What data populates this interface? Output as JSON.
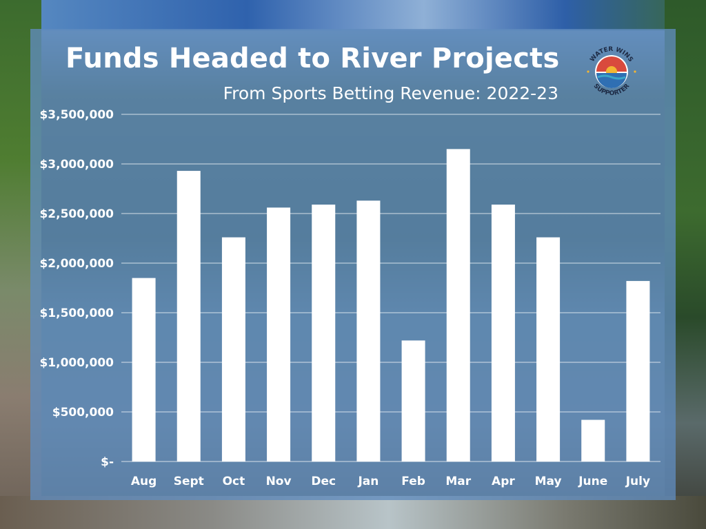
{
  "header": {
    "title": "Funds Headed to River Projects",
    "subtitle": "From Sports Betting Revenue: 2022-23"
  },
  "badge": {
    "top_text": "WATER WINS",
    "bottom_text": "SUPPORTER",
    "colors": {
      "red": "#d94a3d",
      "gold": "#f2b632",
      "blue": "#2f6fb3",
      "teal": "#3aa6c9"
    }
  },
  "chart_data": {
    "type": "bar",
    "title": "Funds Headed to River Projects",
    "subtitle": "From Sports Betting Revenue: 2022-23",
    "categories": [
      "Aug",
      "Sept",
      "Oct",
      "Nov",
      "Dec",
      "Jan",
      "Feb",
      "Mar",
      "Apr",
      "May",
      "June",
      "July"
    ],
    "values": [
      1850000,
      2930000,
      2260000,
      2560000,
      2590000,
      2630000,
      1220000,
      3150000,
      2590000,
      2260000,
      420000,
      1820000
    ],
    "ylim": [
      0,
      3500000
    ],
    "yticks": [
      0,
      500000,
      1000000,
      1500000,
      2000000,
      2500000,
      3000000,
      3500000
    ],
    "ytick_labels": [
      "$-",
      "$500,000",
      "$1,000,000",
      "$1,500,000",
      "$2,000,000",
      "$2,500,000",
      "$3,000,000",
      "$3,500,000"
    ],
    "grid": true,
    "bar_color": "#ffffff",
    "grid_color": "#ffffff"
  }
}
